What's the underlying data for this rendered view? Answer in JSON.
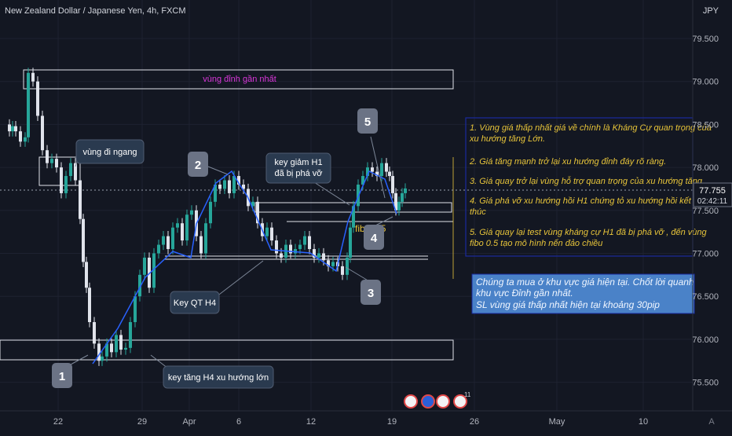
{
  "header": {
    "symbol_title": "New Zealand Dollar / Japanese Yen, 4h, FXCM",
    "currency": "JPY"
  },
  "price_axis": {
    "ticks": [
      "79.500",
      "79.000",
      "78.500",
      "78.000",
      "77.500",
      "77.000",
      "76.500",
      "76.000",
      "75.500"
    ],
    "current_price": "77.755",
    "countdown": "02:42:11"
  },
  "time_axis": {
    "ticks": [
      "22",
      "29",
      "Apr",
      "6",
      "12",
      "19",
      "26",
      "May",
      "10"
    ],
    "auto_label": "A"
  },
  "annotations": {
    "top_zone_label": "vùng đỉnh gần nhất",
    "sideways_label": "vùng đi ngang",
    "key_drop_label_line1": "key giảm H1",
    "key_drop_label_line2": "đã bị phá vỡ",
    "key_qt_label": "Key QT H4",
    "key_rise_label": "key tăng H4 xu hướng lớn",
    "fibo_label": "fibo 0.5",
    "wave_labels": [
      "1",
      "2",
      "3",
      "4",
      "5"
    ]
  },
  "notes": {
    "analysis_points": [
      "1. Vùng giá thấp nhất giá về chính là Kháng Cự quan trọng của xu hướng tăng Lớn.",
      "2. Giá tăng mạnh trở lại xu hướng đỉnh đáy rõ ràng.",
      "3. Giá quay trở lại vùng hỗ trợ quan trọng của xu hướng tăng",
      "4. Giá phá vỡ xu hướng hồi H1 chứng tỏ xu hướng hồi kết thúc",
      "5. Giá quay lại test vùng kháng cự H1 đã bị phá vỡ , đến vùng fibo 0.5 tạo mô hình nến đảo chiều"
    ],
    "trade_plan": [
      "Chúng ta mua ở khu vực giá hiện tại. Chốt lời quanh khu vực Đỉnh gần nhất.",
      "SL vùng giá thấp nhất hiện tại khoảng 30pip"
    ]
  },
  "event_badges": [
    "11"
  ],
  "colors": {
    "background": "#131722",
    "up_candle": "#26a69a",
    "down_candle": "#e0e3eb",
    "trend_line": "#2962ff",
    "note_text": "#e8c53a",
    "zone_label": "#d936d9",
    "callout_bg": "#2a3a4f"
  },
  "chart_data": {
    "type": "candlestick",
    "title": "New Zealand Dollar / Japanese Yen, 4h, FXCM",
    "ylim": [
      75.2,
      79.8
    ],
    "x_ticks": [
      "22",
      "29",
      "Apr",
      "6",
      "12",
      "19",
      "26",
      "May",
      "10"
    ],
    "price_path": [
      {
        "x": 0,
        "y": 78.5
      },
      {
        "x": 6,
        "y": 78.42
      },
      {
        "x": 10,
        "y": 78.48
      },
      {
        "x": 14,
        "y": 78.42
      },
      {
        "x": 20,
        "y": 78.3
      },
      {
        "x": 26,
        "y": 78.35
      },
      {
        "x": 30,
        "y": 79.1
      },
      {
        "x": 36,
        "y": 79.0
      },
      {
        "x": 42,
        "y": 78.6
      },
      {
        "x": 48,
        "y": 78.2
      },
      {
        "x": 54,
        "y": 78.05
      },
      {
        "x": 60,
        "y": 78.1
      },
      {
        "x": 66,
        "y": 78.0
      },
      {
        "x": 72,
        "y": 77.7
      },
      {
        "x": 78,
        "y": 77.9
      },
      {
        "x": 84,
        "y": 78.05
      },
      {
        "x": 90,
        "y": 77.85
      },
      {
        "x": 96,
        "y": 77.4
      },
      {
        "x": 100,
        "y": 76.9
      },
      {
        "x": 104,
        "y": 76.6
      },
      {
        "x": 108,
        "y": 76.2
      },
      {
        "x": 114,
        "y": 75.95
      },
      {
        "x": 120,
        "y": 75.75
      },
      {
        "x": 124,
        "y": 75.8
      },
      {
        "x": 130,
        "y": 75.95
      },
      {
        "x": 136,
        "y": 75.85
      },
      {
        "x": 142,
        "y": 76.05
      },
      {
        "x": 148,
        "y": 75.88
      },
      {
        "x": 154,
        "y": 75.9
      },
      {
        "x": 160,
        "y": 76.2
      },
      {
        "x": 166,
        "y": 76.5
      },
      {
        "x": 172,
        "y": 76.75
      },
      {
        "x": 178,
        "y": 76.95
      },
      {
        "x": 184,
        "y": 76.6
      },
      {
        "x": 190,
        "y": 77.0
      },
      {
        "x": 196,
        "y": 77.1
      },
      {
        "x": 202,
        "y": 77.2
      },
      {
        "x": 208,
        "y": 77.05
      },
      {
        "x": 214,
        "y": 77.3
      },
      {
        "x": 220,
        "y": 77.35
      },
      {
        "x": 226,
        "y": 77.15
      },
      {
        "x": 232,
        "y": 77.45
      },
      {
        "x": 238,
        "y": 77.5
      },
      {
        "x": 244,
        "y": 77.2
      },
      {
        "x": 250,
        "y": 77.0
      },
      {
        "x": 256,
        "y": 77.35
      },
      {
        "x": 262,
        "y": 77.6
      },
      {
        "x": 268,
        "y": 77.8
      },
      {
        "x": 274,
        "y": 77.75
      },
      {
        "x": 280,
        "y": 77.85
      },
      {
        "x": 286,
        "y": 77.7
      },
      {
        "x": 292,
        "y": 77.9
      },
      {
        "x": 298,
        "y": 77.8
      },
      {
        "x": 304,
        "y": 77.75
      },
      {
        "x": 310,
        "y": 77.55
      },
      {
        "x": 316,
        "y": 77.6
      },
      {
        "x": 322,
        "y": 77.35
      },
      {
        "x": 328,
        "y": 77.2
      },
      {
        "x": 334,
        "y": 77.3
      },
      {
        "x": 340,
        "y": 77.15
      },
      {
        "x": 346,
        "y": 77.0
      },
      {
        "x": 352,
        "y": 76.95
      },
      {
        "x": 358,
        "y": 77.1
      },
      {
        "x": 364,
        "y": 77.0
      },
      {
        "x": 370,
        "y": 77.05
      },
      {
        "x": 376,
        "y": 77.1
      },
      {
        "x": 382,
        "y": 77.2
      },
      {
        "x": 388,
        "y": 77.05
      },
      {
        "x": 394,
        "y": 76.95
      },
      {
        "x": 400,
        "y": 77.0
      },
      {
        "x": 406,
        "y": 76.92
      },
      {
        "x": 412,
        "y": 76.85
      },
      {
        "x": 418,
        "y": 76.9
      },
      {
        "x": 424,
        "y": 76.85
      },
      {
        "x": 430,
        "y": 76.75
      },
      {
        "x": 436,
        "y": 76.95
      },
      {
        "x": 440,
        "y": 77.3
      },
      {
        "x": 444,
        "y": 77.55
      },
      {
        "x": 450,
        "y": 77.8
      },
      {
        "x": 456,
        "y": 77.9
      },
      {
        "x": 462,
        "y": 78.0
      },
      {
        "x": 468,
        "y": 77.95
      },
      {
        "x": 474,
        "y": 77.9
      },
      {
        "x": 480,
        "y": 78.05
      },
      {
        "x": 486,
        "y": 77.95
      },
      {
        "x": 490,
        "y": 77.9
      },
      {
        "x": 494,
        "y": 77.7
      },
      {
        "x": 498,
        "y": 77.5
      },
      {
        "x": 502,
        "y": 77.6
      },
      {
        "x": 506,
        "y": 77.7
      },
      {
        "x": 510,
        "y": 77.755
      }
    ]
  }
}
